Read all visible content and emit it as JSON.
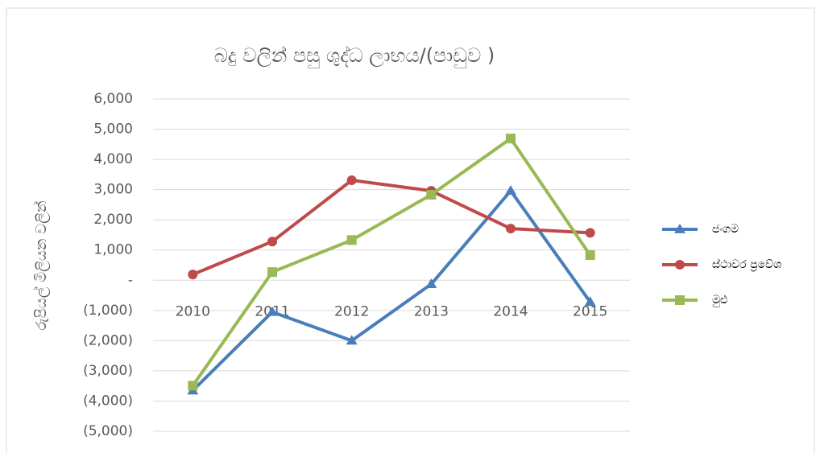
{
  "chart_data": {
    "type": "line",
    "title": "බදු වලින් පසු ශුද්ධ ලාභය/(පාඩුව )",
    "y_label": "රුපියල් මිලියන වලින්",
    "categories": [
      "2010",
      "2011",
      "2012",
      "2013",
      "2014",
      "2015"
    ],
    "series": [
      {
        "name": "ජංගම",
        "color": "#4a7ebb",
        "marker": "triangle",
        "values": [
          -3650,
          -1050,
          -2000,
          -130,
          2960,
          -720
        ]
      },
      {
        "name": "ස්ථාවර ප්‍රවේශ",
        "color": "#be4b48",
        "marker": "circle",
        "values": [
          190,
          1280,
          3310,
          2960,
          1710,
          1570
        ]
      },
      {
        "name": "මුළු",
        "color": "#98b954",
        "marker": "square",
        "values": [
          -3490,
          270,
          1330,
          2830,
          4690,
          830
        ]
      }
    ],
    "ylim": [
      -5000,
      6000
    ],
    "yticks": [
      {
        "value": 6000,
        "label": "6,000"
      },
      {
        "value": 5000,
        "label": "5,000"
      },
      {
        "value": 4000,
        "label": "4,000"
      },
      {
        "value": 3000,
        "label": "3,000"
      },
      {
        "value": 2000,
        "label": "2,000"
      },
      {
        "value": 1000,
        "label": "1,000"
      },
      {
        "value": 0,
        "label": "-"
      },
      {
        "value": -1000,
        "label": "(1,000)"
      },
      {
        "value": -2000,
        "label": "(2,000)"
      },
      {
        "value": -3000,
        "label": "(3,000)"
      },
      {
        "value": -4000,
        "label": "(4,000)"
      },
      {
        "value": -5000,
        "label": "(5,000)"
      }
    ],
    "grid": true,
    "legend": "right"
  }
}
